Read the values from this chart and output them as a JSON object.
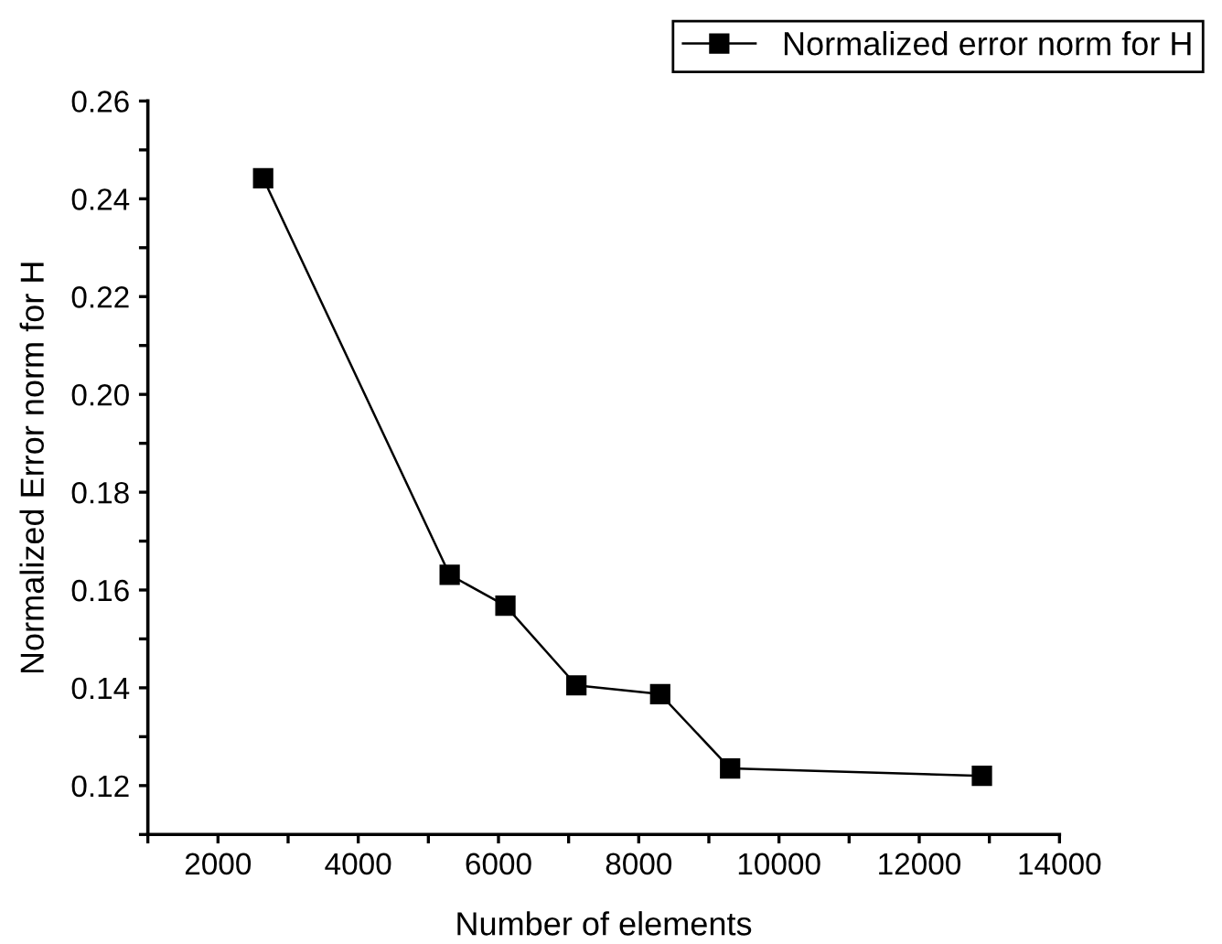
{
  "chart_data": {
    "type": "line",
    "xlabel": "Number of elements",
    "ylabel": "Normalized Error norm for H",
    "x": [
      2644,
      5304,
      6099,
      7111,
      8306,
      9303,
      12894
    ],
    "series": [
      {
        "name": "Normalized error norm for H",
        "color": "#000000",
        "values": [
          0.2442,
          0.1631,
          0.1568,
          0.1405,
          0.1387,
          0.1235,
          0.122
        ]
      }
    ],
    "xlim": [
      1000,
      14000
    ],
    "xticks": [
      {
        "value": 1000,
        "label": null
      },
      2000,
      {
        "value": 3000,
        "label": null
      },
      4000,
      {
        "value": 5000,
        "label": null
      },
      6000,
      {
        "value": 7000,
        "label": null
      },
      8000,
      {
        "value": 9000,
        "label": null
      },
      10000,
      {
        "value": 11000,
        "label": null
      },
      12000,
      {
        "value": 13000,
        "label": null
      },
      14000
    ],
    "ylim": [
      0.11,
      0.26
    ],
    "yticks": [
      {
        "value": 0.11,
        "label": null
      },
      {
        "value": 0.12,
        "label": "0.12"
      },
      {
        "value": 0.13,
        "label": null
      },
      {
        "value": 0.14,
        "label": "0.14"
      },
      {
        "value": 0.15,
        "label": null
      },
      {
        "value": 0.16,
        "label": "0.16"
      },
      {
        "value": 0.17,
        "label": null
      },
      {
        "value": 0.18,
        "label": "0.18"
      },
      {
        "value": 0.19,
        "label": null
      },
      {
        "value": 0.2,
        "label": "0.20"
      },
      {
        "value": 0.21,
        "label": null
      },
      {
        "value": 0.22,
        "label": "0.22"
      },
      {
        "value": 0.23,
        "label": null
      },
      {
        "value": 0.24,
        "label": "0.24"
      },
      {
        "value": 0.25,
        "label": null
      },
      {
        "value": 0.26,
        "label": "0.26"
      }
    ],
    "grid": false,
    "legend": "top right",
    "marker": "square",
    "line_style": "solid"
  }
}
